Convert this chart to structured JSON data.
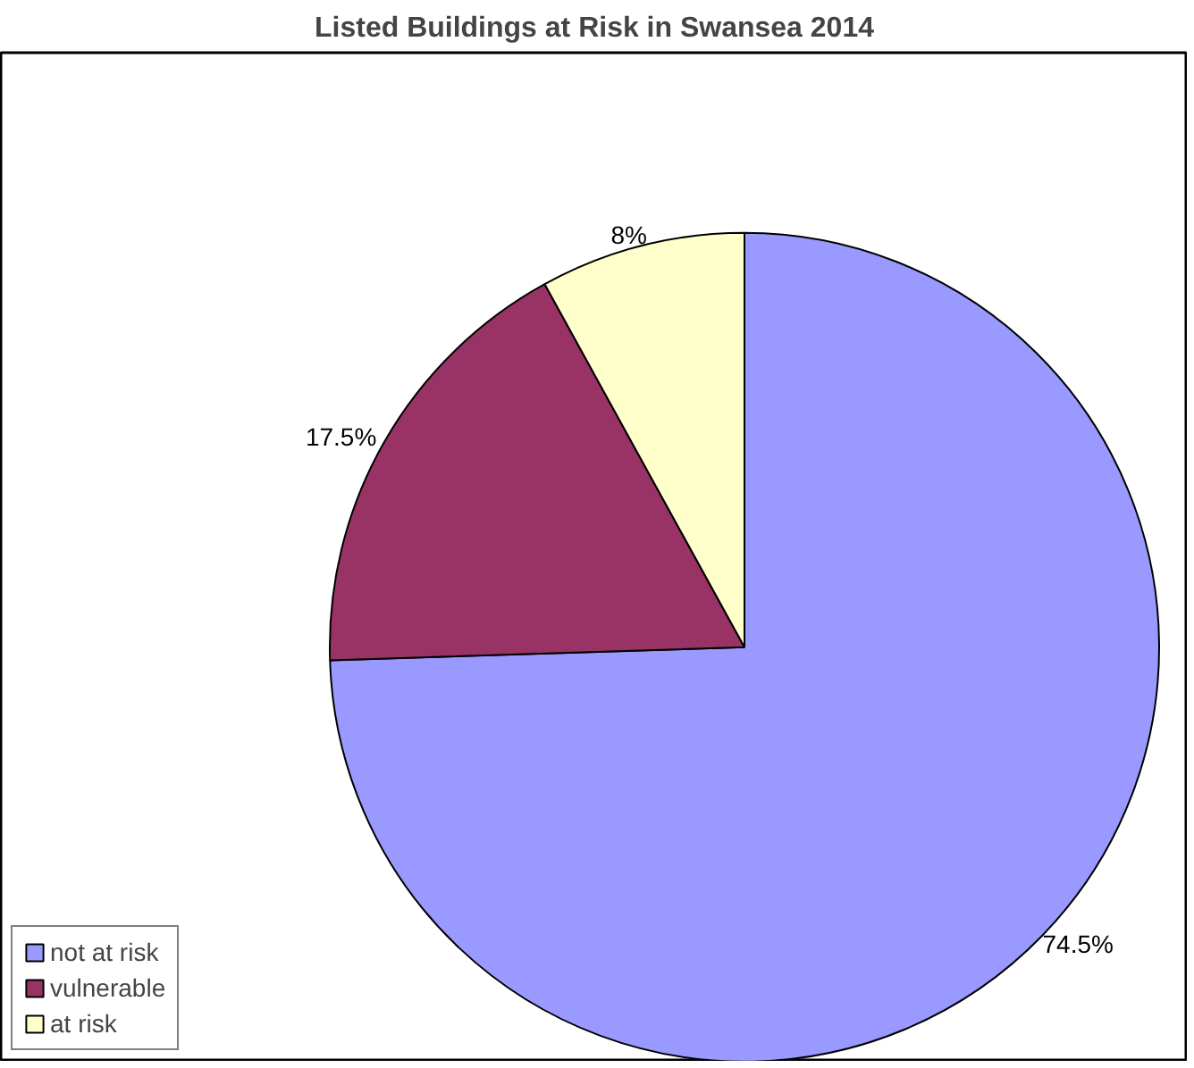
{
  "chart_data": {
    "type": "pie",
    "title": "Listed Buildings at Risk in Swansea 2014",
    "categories": [
      "not at risk",
      "vulnerable",
      "at risk"
    ],
    "values": [
      74.5,
      17.5,
      8
    ],
    "value_labels": [
      "74.5%",
      "17.5%",
      "8%"
    ],
    "colors": [
      "#9999ff",
      "#993366",
      "#ffffcc"
    ],
    "legend": "bottom left"
  }
}
